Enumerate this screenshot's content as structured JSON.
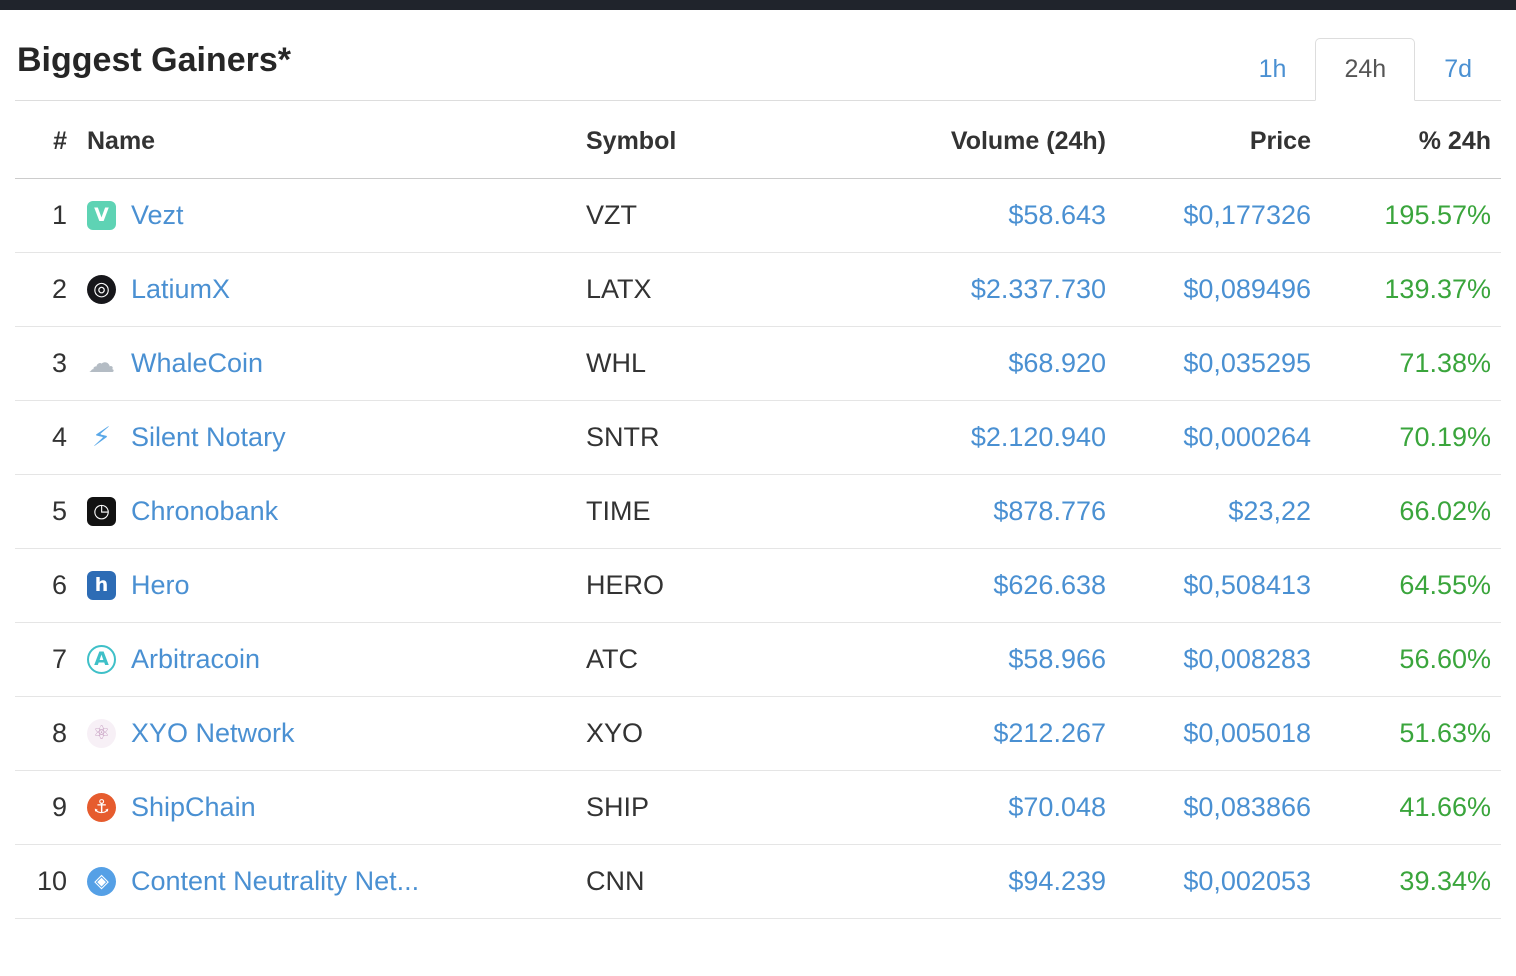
{
  "page": {
    "title": "Biggest Gainers*",
    "tabs": [
      {
        "label": "1h",
        "active": false
      },
      {
        "label": "24h",
        "active": true
      },
      {
        "label": "7d",
        "active": false
      }
    ]
  },
  "colors": {
    "link": "#4a90d2",
    "positive": "#3aa53c",
    "navbar_strip": "#20242c",
    "border": "#dddddd"
  },
  "table": {
    "headers": {
      "rank": "#",
      "name": "Name",
      "symbol": "Symbol",
      "volume": "Volume (24h)",
      "price": "Price",
      "percent": "% 24h"
    },
    "rows": [
      {
        "rank": "1",
        "name": "Vezt",
        "symbol": "VZT",
        "volume": "$58.643",
        "price": "$0,177326",
        "percent": "195.57%",
        "icon": {
          "name": "vezt-icon",
          "glyph": "V",
          "shape": "rounded-square",
          "bg": "#5ed3b4",
          "fg": "#ffffff",
          "bold": true
        }
      },
      {
        "rank": "2",
        "name": "LatiumX",
        "symbol": "LATX",
        "volume": "$2.337.730",
        "price": "$0,089496",
        "percent": "139.37%",
        "icon": {
          "name": "latiumx-icon",
          "glyph": "◎",
          "shape": "circle",
          "bg": "#17171b",
          "fg": "#ffffff"
        }
      },
      {
        "rank": "3",
        "name": "WhaleCoin",
        "symbol": "WHL",
        "volume": "$68.920",
        "price": "$0,035295",
        "percent": "71.38%",
        "icon": {
          "name": "whalecoin-icon",
          "glyph": "☁",
          "shape": "plain",
          "bg": "",
          "fg": "#b4bcc4"
        }
      },
      {
        "rank": "4",
        "name": "Silent Notary",
        "symbol": "SNTR",
        "volume": "$2.120.940",
        "price": "$0,000264",
        "percent": "70.19%",
        "icon": {
          "name": "silent-notary-icon",
          "glyph": "⚡",
          "shape": "plain",
          "bg": "",
          "fg": "#5aa8e8"
        }
      },
      {
        "rank": "5",
        "name": "Chronobank",
        "symbol": "TIME",
        "volume": "$878.776",
        "price": "$23,22",
        "percent": "66.02%",
        "icon": {
          "name": "chronobank-icon",
          "glyph": "◷",
          "shape": "rounded-square",
          "bg": "#121212",
          "fg": "#ffffff"
        }
      },
      {
        "rank": "6",
        "name": "Hero",
        "symbol": "HERO",
        "volume": "$626.638",
        "price": "$0,508413",
        "percent": "64.55%",
        "icon": {
          "name": "hero-icon",
          "glyph": "h",
          "shape": "rounded-square",
          "bg": "#2d6cb5",
          "fg": "#ffffff",
          "bold": true
        }
      },
      {
        "rank": "7",
        "name": "Arbitracoin",
        "symbol": "ATC",
        "volume": "$58.966",
        "price": "$0,008283",
        "percent": "56.60%",
        "icon": {
          "name": "arbitracoin-icon",
          "glyph": "A",
          "shape": "circle",
          "bg": "#ffffff",
          "fg": "#3fc0c8",
          "border": "2px solid #3fc0c8",
          "bold": true
        }
      },
      {
        "rank": "8",
        "name": "XYO Network",
        "symbol": "XYO",
        "volume": "$212.267",
        "price": "$0,005018",
        "percent": "51.63%",
        "icon": {
          "name": "xyo-network-icon",
          "glyph": "⚛",
          "shape": "circle",
          "bg": "#f7f0f6",
          "fg": "#c59cc0"
        }
      },
      {
        "rank": "9",
        "name": "ShipChain",
        "symbol": "SHIP",
        "volume": "$70.048",
        "price": "$0,083866",
        "percent": "41.66%",
        "icon": {
          "name": "shipchain-icon",
          "glyph": "⚓",
          "shape": "circle",
          "bg": "#e65c2e",
          "fg": "#ffffff"
        }
      },
      {
        "rank": "10",
        "name": "Content Neutrality Net...",
        "symbol": "CNN",
        "volume": "$94.239",
        "price": "$0,002053",
        "percent": "39.34%",
        "icon": {
          "name": "cnn-icon",
          "glyph": "◈",
          "shape": "circle",
          "bg": "#55a0e6",
          "fg": "#ffffff"
        }
      }
    ]
  }
}
